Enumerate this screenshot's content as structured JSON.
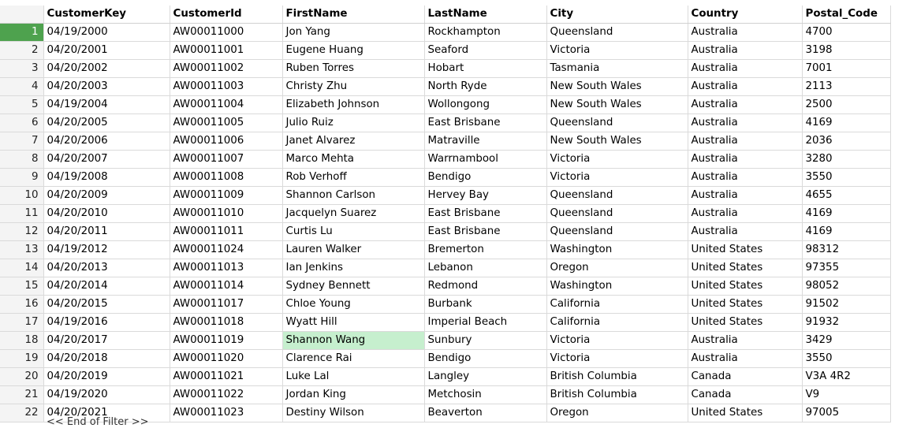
{
  "grid": {
    "active_row_index": 0,
    "selected_cell": {
      "row": 17,
      "column": "FirstName"
    },
    "columns": [
      "CustomerKey",
      "CustomerId",
      "FirstName",
      "LastName",
      "City",
      "Country",
      "Postal_Code"
    ],
    "rows": [
      {
        "n": "1",
        "cells": [
          "04/19/2000",
          "AW00011000",
          "Jon Yang",
          "Rockhampton",
          "Queensland",
          "Australia",
          "4700"
        ]
      },
      {
        "n": "2",
        "cells": [
          "04/20/2001",
          "AW00011001",
          "Eugene Huang",
          "Seaford",
          "Victoria",
          "Australia",
          "3198"
        ]
      },
      {
        "n": "3",
        "cells": [
          "04/20/2002",
          "AW00011002",
          "Ruben Torres",
          "Hobart",
          "Tasmania",
          "Australia",
          "7001"
        ]
      },
      {
        "n": "4",
        "cells": [
          "04/20/2003",
          "AW00011003",
          "Christy Zhu",
          "North Ryde",
          "New South Wales",
          "Australia",
          "2113"
        ]
      },
      {
        "n": "5",
        "cells": [
          "04/19/2004",
          "AW00011004",
          "Elizabeth Johnson",
          "Wollongong",
          "New South Wales",
          "Australia",
          "2500"
        ]
      },
      {
        "n": "6",
        "cells": [
          "04/20/2005",
          "AW00011005",
          "Julio Ruiz",
          "East Brisbane",
          "Queensland",
          "Australia",
          "4169"
        ]
      },
      {
        "n": "7",
        "cells": [
          "04/20/2006",
          "AW00011006",
          "Janet Alvarez",
          "Matraville",
          "New South Wales",
          "Australia",
          "2036"
        ]
      },
      {
        "n": "8",
        "cells": [
          "04/20/2007",
          "AW00011007",
          "Marco Mehta",
          "Warrnambool",
          "Victoria",
          "Australia",
          "3280"
        ]
      },
      {
        "n": "9",
        "cells": [
          "04/19/2008",
          "AW00011008",
          "Rob Verhoff",
          "Bendigo",
          "Victoria",
          "Australia",
          "3550"
        ]
      },
      {
        "n": "10",
        "cells": [
          "04/20/2009",
          "AW00011009",
          "Shannon Carlson",
          "Hervey Bay",
          "Queensland",
          "Australia",
          "4655"
        ]
      },
      {
        "n": "11",
        "cells": [
          "04/20/2010",
          "AW00011010",
          "Jacquelyn Suarez",
          "East Brisbane",
          "Queensland",
          "Australia",
          "4169"
        ]
      },
      {
        "n": "12",
        "cells": [
          "04/20/2011",
          "AW00011011",
          "Curtis Lu",
          "East Brisbane",
          "Queensland",
          "Australia",
          "4169"
        ]
      },
      {
        "n": "13",
        "cells": [
          "04/19/2012",
          "AW00011024",
          "Lauren Walker",
          "Bremerton",
          "Washington",
          "United States",
          "98312"
        ]
      },
      {
        "n": "14",
        "cells": [
          "04/20/2013",
          "AW00011013",
          "Ian Jenkins",
          "Lebanon",
          "Oregon",
          "United States",
          "97355"
        ]
      },
      {
        "n": "15",
        "cells": [
          "04/20/2014",
          "AW00011014",
          "Sydney Bennett",
          "Redmond",
          "Washington",
          "United States",
          "98052"
        ]
      },
      {
        "n": "16",
        "cells": [
          "04/20/2015",
          "AW00011017",
          "Chloe Young",
          "Burbank",
          "California",
          "United States",
          "91502"
        ]
      },
      {
        "n": "17",
        "cells": [
          "04/19/2016",
          "AW00011018",
          "Wyatt Hill",
          "Imperial Beach",
          "California",
          "United States",
          "91932"
        ]
      },
      {
        "n": "18",
        "cells": [
          "04/20/2017",
          "AW00011019",
          "Shannon Wang",
          "Sunbury",
          "Victoria",
          "Australia",
          "3429"
        ]
      },
      {
        "n": "19",
        "cells": [
          "04/20/2018",
          "AW00011020",
          "Clarence Rai",
          "Bendigo",
          "Victoria",
          "Australia",
          "3550"
        ]
      },
      {
        "n": "20",
        "cells": [
          "04/20/2019",
          "AW00011021",
          "Luke Lal",
          "Langley",
          "British Columbia",
          "Canada",
          "V3A 4R2"
        ]
      },
      {
        "n": "21",
        "cells": [
          "04/19/2020",
          "AW00011022",
          "Jordan King",
          "Metchosin",
          "British Columbia",
          "Canada",
          "V9"
        ]
      },
      {
        "n": "22",
        "cells": [
          "04/20/2021",
          "AW00011023",
          "Destiny Wilson",
          "Beaverton",
          "Oregon",
          "United States",
          "97005"
        ]
      }
    ],
    "end_of_filter": "<< End of Filter >>"
  }
}
